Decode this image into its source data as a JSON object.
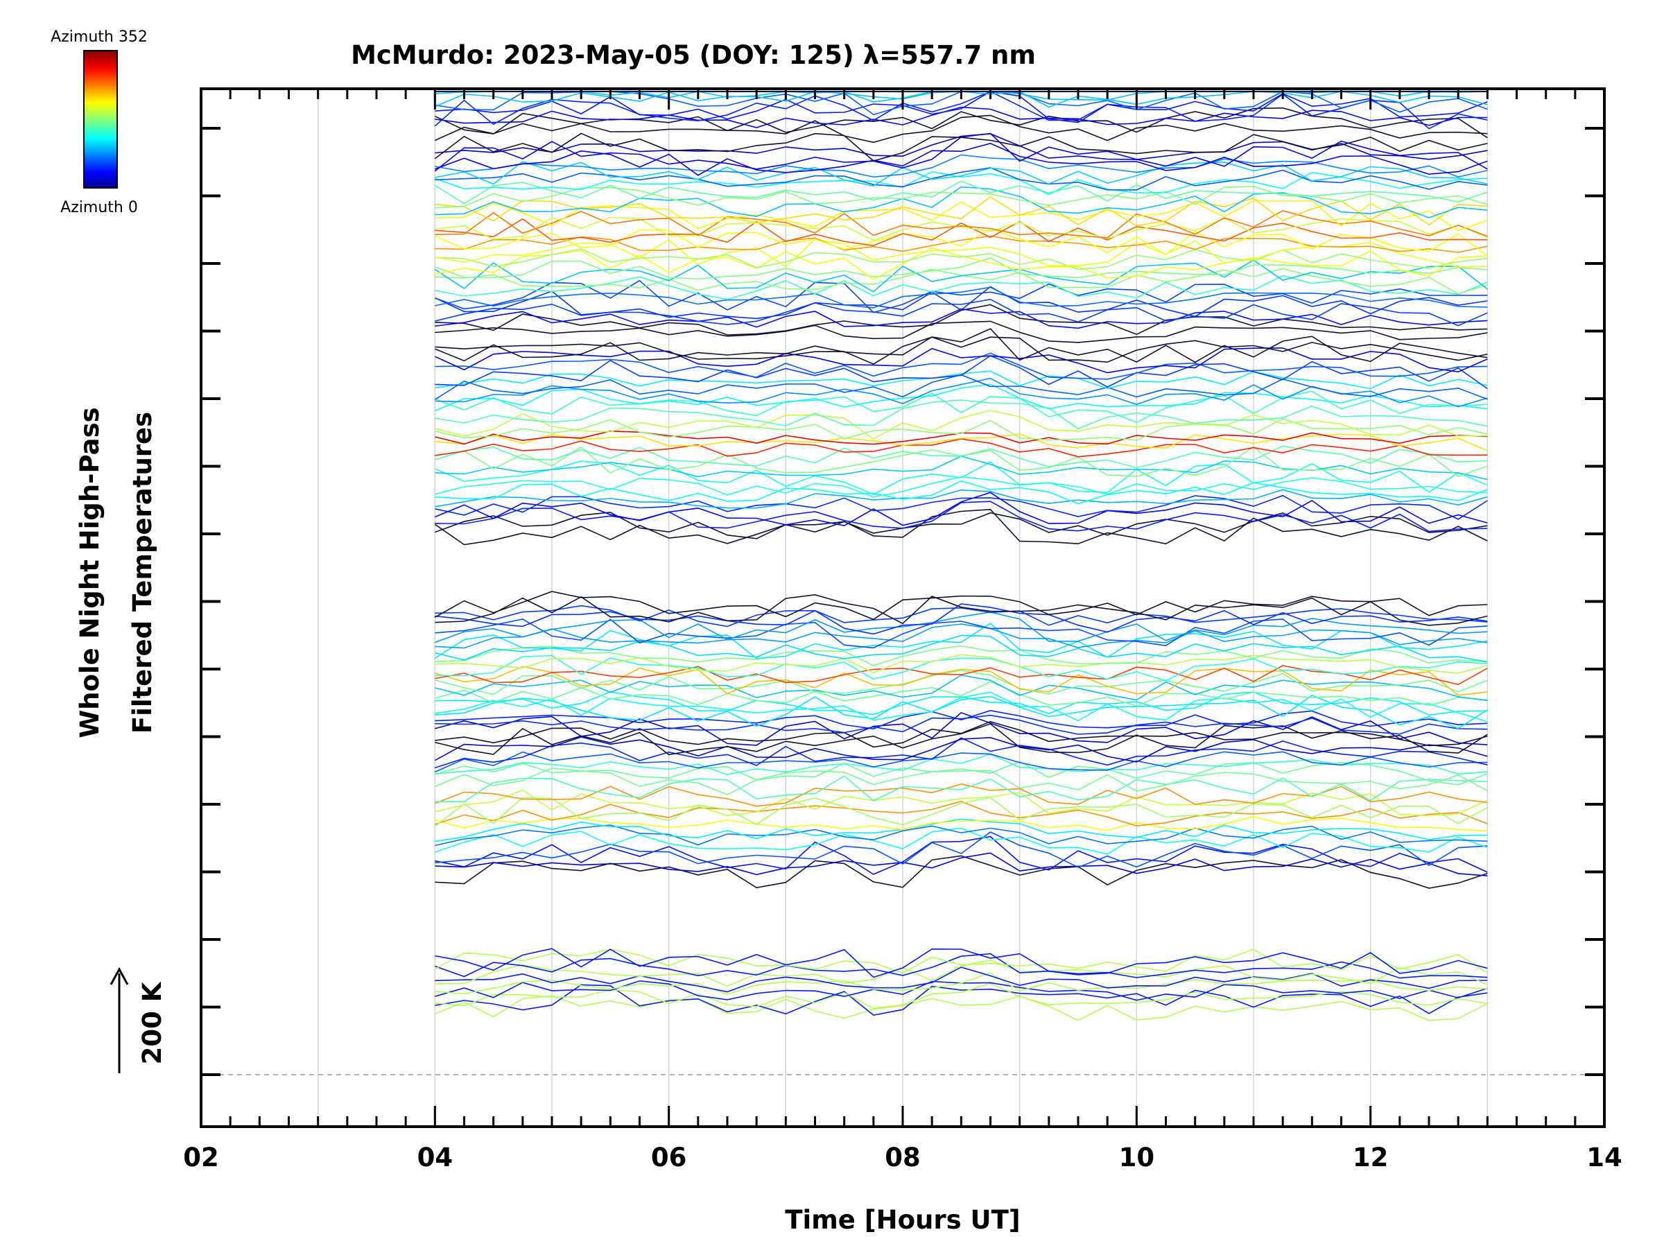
{
  "chart_data": {
    "type": "line",
    "title": "McMurdo: 2023-May-05 (DOY: 125) λ=557.7 nm",
    "xlabel": "Time [Hours UT]",
    "ylabel_line1": "Whole Night High-Pass",
    "ylabel_line2": "Filtered Temperatures",
    "scale_label": "200 K",
    "xlim": [
      2,
      14
    ],
    "x_ticks": [
      "02",
      "04",
      "06",
      "08",
      "10",
      "12",
      "14"
    ],
    "x_tick_values": [
      2,
      4,
      6,
      8,
      10,
      12,
      14
    ],
    "x_start": 4.0,
    "x_end": 13.15,
    "x_step": 0.25,
    "colorbar": {
      "top_label": "Azimuth  352",
      "bottom_label": "Azimuth  0"
    },
    "groups": [
      {
        "name": "elevation-ring-1",
        "n_lines": 10,
        "baseline_ticks": 1
      },
      {
        "name": "elevation-ring-2",
        "n_lines": 20,
        "baseline_ticks": 3
      },
      {
        "name": "elevation-ring-3",
        "n_lines": 24,
        "baseline_ticks": 5
      },
      {
        "name": "elevation-ring-4",
        "n_lines": 28,
        "baseline_ticks": 8
      },
      {
        "name": "elevation-ring-5",
        "n_lines": 32,
        "baseline_ticks": 11
      },
      {
        "name": "elevation-ring-6",
        "n_lines": 36,
        "baseline_ticks": 14
      }
    ],
    "y_tick_count": 15,
    "reference_line": "dashed gray at zero"
  }
}
